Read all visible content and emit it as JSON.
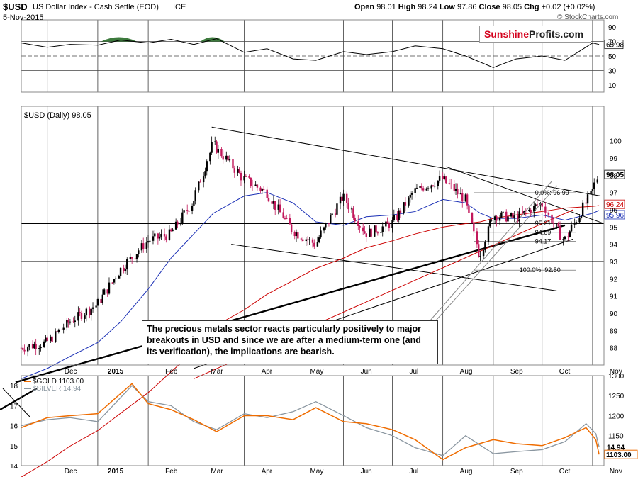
{
  "header": {
    "symbol": "$USD",
    "name": "US Dollar Index - Cash Settle (EOD)",
    "exchange": "ICE",
    "date": "5-Nov-2015",
    "open_label": "Open",
    "open": "98.01",
    "high_label": "High",
    "high": "98.24",
    "low_label": "Low",
    "low": "97.86",
    "close_label": "Close",
    "close": "98.05",
    "chg_label": "Chg",
    "chg": "+0.02 (+0.02%)",
    "watermark": "© StockCharts.com"
  },
  "logo": {
    "part1": "Sunshine",
    "part2": "Profits.com"
  },
  "annotation": "The precious metals sector reacts particularly positively to major breakouts in USD and since we are after a medium-term one (and its verification), the implications are bearish.",
  "colors": {
    "price_up": "#000000",
    "price_down": "#c2185b",
    "ma50": "#1a2fb5",
    "ma200": "#cc0000",
    "gold": "#ef6c00",
    "silver": "#8a96a0",
    "rsi_fill": "#3d7a3d"
  },
  "chart_data": [
    {
      "type": "line",
      "panel": "RSI",
      "ylim": [
        0,
        100
      ],
      "yticks": [
        "90",
        "70",
        "50",
        "30",
        "10"
      ],
      "last_value_label": "65.98",
      "x": [
        "2014-11-15",
        "2014-12-01",
        "2014-12-15",
        "2015-01-01",
        "2015-01-15",
        "2015-02-01",
        "2015-02-15",
        "2015-03-01",
        "2015-03-15",
        "2015-04-01",
        "2015-04-15",
        "2015-05-01",
        "2015-05-15",
        "2015-06-01",
        "2015-06-15",
        "2015-07-01",
        "2015-07-15",
        "2015-08-01",
        "2015-08-15",
        "2015-09-01",
        "2015-09-15",
        "2015-10-01",
        "2015-10-15",
        "2015-11-01",
        "2015-11-05"
      ],
      "values": [
        68,
        62,
        66,
        65,
        72,
        68,
        73,
        66,
        74,
        55,
        60,
        46,
        44,
        56,
        52,
        56,
        64,
        60,
        50,
        34,
        46,
        50,
        44,
        68,
        66
      ]
    },
    {
      "type": "candlestick",
      "panel": "Price",
      "title": "$USD (Daily) 98.05",
      "ylim": [
        87,
        102
      ],
      "yticks": [
        "100",
        "99",
        "98",
        "97",
        "96",
        "95",
        "94",
        "93",
        "92",
        "91",
        "90",
        "89",
        "88"
      ],
      "price_labels": [
        "98.05",
        "96.24",
        "95.96"
      ],
      "fib_labels": [
        "0.0%: 96.99",
        "95.21",
        "94.69",
        "94.17",
        "100.0%: 92.50"
      ],
      "x": [
        "2014-11-15",
        "2014-12-01",
        "2014-12-15",
        "2015-01-01",
        "2015-01-15",
        "2015-02-01",
        "2015-02-15",
        "2015-03-01",
        "2015-03-13",
        "2015-04-01",
        "2015-04-15",
        "2015-05-01",
        "2015-05-15",
        "2015-06-01",
        "2015-06-15",
        "2015-07-01",
        "2015-07-15",
        "2015-08-01",
        "2015-08-15",
        "2015-08-24",
        "2015-09-01",
        "2015-09-15",
        "2015-10-01",
        "2015-10-15",
        "2015-11-01",
        "2015-11-05"
      ],
      "close": [
        88.0,
        88.3,
        89.5,
        90.5,
        92.5,
        94.2,
        94.6,
        96.5,
        99.8,
        97.8,
        97.0,
        94.8,
        94.0,
        96.8,
        94.6,
        95.2,
        97.1,
        97.8,
        96.6,
        93.3,
        95.7,
        95.5,
        96.4,
        94.2,
        97.0,
        98.05
      ],
      "ma50": [
        86.2,
        86.8,
        87.5,
        88.3,
        89.5,
        91.4,
        93.2,
        94.6,
        95.8,
        96.8,
        97.0,
        96.4,
        95.3,
        95.1,
        95.6,
        95.7,
        95.9,
        96.6,
        96.4,
        95.8,
        95.5,
        95.5,
        95.7,
        95.4,
        95.8,
        95.96
      ],
      "ma200": [
        80.5,
        81.4,
        82.3,
        83.2,
        84.2,
        85.4,
        86.6,
        87.8,
        89.2,
        90.2,
        91.1,
        91.9,
        92.6,
        93.2,
        93.8,
        94.2,
        94.6,
        95.0,
        95.2,
        95.3,
        95.5,
        95.7,
        95.9,
        96.1,
        96.2,
        96.24
      ]
    },
    {
      "type": "line",
      "panel": "Gold & Silver",
      "series": [
        {
          "name": "$GOLD 1103.00",
          "axis": "right",
          "ylim": [
            1075,
            1300
          ],
          "yticks": [
            "1300",
            "1250",
            "1200",
            "1150"
          ],
          "last_value_label": "1103.00",
          "values": [
            1170,
            1195,
            1200,
            1205,
            1280,
            1230,
            1215,
            1190,
            1160,
            1200,
            1200,
            1190,
            1220,
            1185,
            1180,
            1165,
            1140,
            1090,
            1120,
            1140,
            1130,
            1125,
            1145,
            1170,
            1140,
            1103
          ]
        },
        {
          "name": "$SILVER 14.94",
          "axis": "left",
          "ylim": [
            14,
            18.5
          ],
          "yticks": [
            "18",
            "17",
            "16",
            "15",
            "14"
          ],
          "last_value_label": "14.94",
          "values": [
            16.0,
            16.3,
            16.4,
            16.2,
            18.0,
            17.2,
            17.0,
            16.2,
            15.8,
            16.6,
            16.4,
            16.7,
            17.2,
            16.5,
            15.9,
            15.5,
            14.9,
            14.5,
            15.5,
            14.6,
            14.7,
            14.8,
            15.2,
            16.1,
            15.6,
            14.94
          ]
        }
      ]
    }
  ],
  "x_axis_labels": [
    "Dec",
    "2015",
    "Feb",
    "Mar",
    "Apr",
    "May",
    "Jun",
    "Jul",
    "Aug",
    "Sep",
    "Oct",
    "Nov"
  ]
}
